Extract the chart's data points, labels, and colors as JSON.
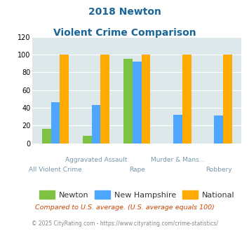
{
  "title_line1": "2018 Newton",
  "title_line2": "Violent Crime Comparison",
  "categories": [
    "All Violent Crime",
    "Aggravated Assault",
    "Rape",
    "Murder & Mans...",
    "Robbery"
  ],
  "cat_labels_top": [
    "",
    "Aggravated Assault",
    "",
    "Murder & Mans...",
    ""
  ],
  "cat_labels_bot": [
    "All Violent Crime",
    "",
    "Rape",
    "",
    "Robbery"
  ],
  "newton": [
    16,
    8,
    95,
    0,
    0
  ],
  "new_hampshire": [
    46,
    43,
    92,
    32,
    31
  ],
  "national": [
    100,
    100,
    100,
    100,
    100
  ],
  "newton_color": "#7dc242",
  "hampshire_color": "#4da6ff",
  "national_color": "#ffaa00",
  "ylim": [
    0,
    120
  ],
  "yticks": [
    0,
    20,
    40,
    60,
    80,
    100,
    120
  ],
  "bg_color": "#dde8ea",
  "title_color": "#1a6699",
  "footer1": "Compared to U.S. average. (U.S. average equals 100)",
  "footer2": "© 2025 CityRating.com - https://www.cityrating.com/crime-statistics/",
  "footer1_color": "#cc4400",
  "footer2_color": "#888888"
}
